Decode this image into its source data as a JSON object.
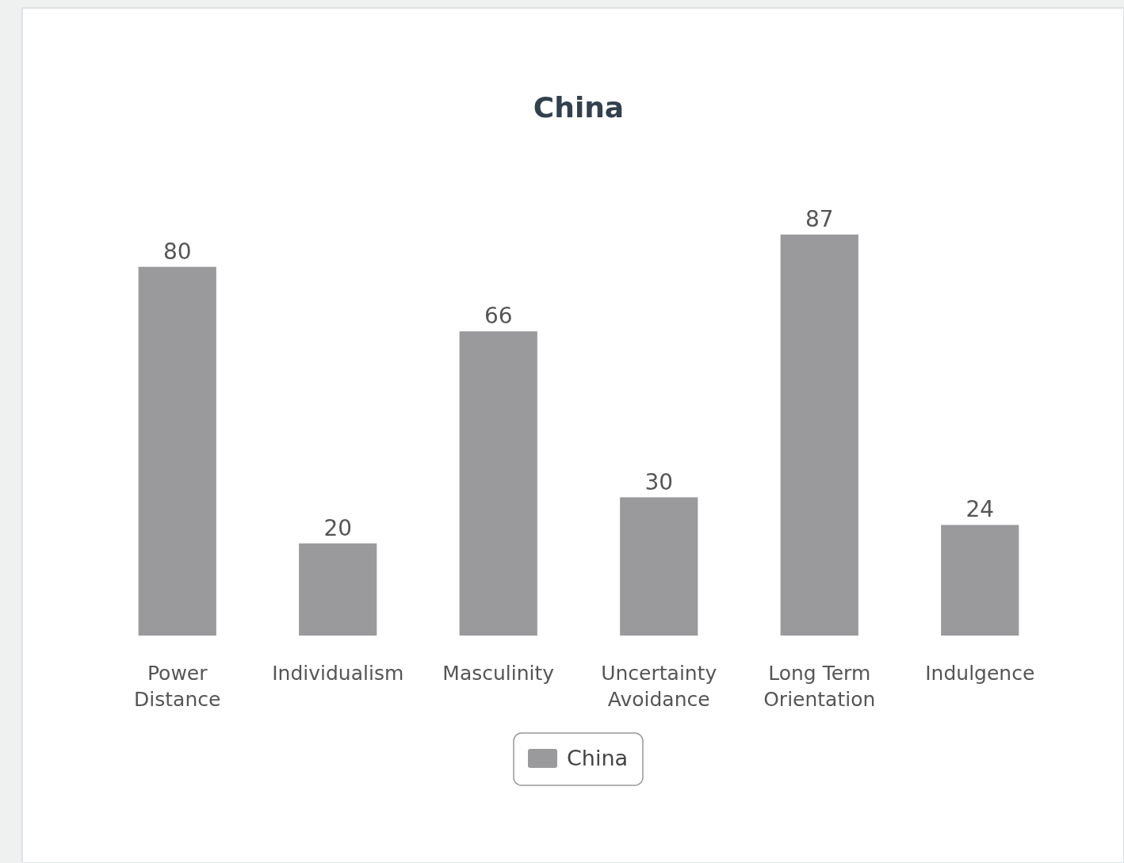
{
  "chart_data": {
    "type": "bar",
    "title": "China",
    "categories": [
      "Power Distance",
      "Individualism",
      "Masculinity",
      "Uncertainty Avoidance",
      "Long Term Orientation",
      "Indulgence"
    ],
    "series": [
      {
        "name": "China",
        "color": "#9a999b",
        "values": [
          80,
          20,
          66,
          30,
          87,
          24
        ]
      }
    ],
    "data_labels": true,
    "legend": "bottom"
  }
}
